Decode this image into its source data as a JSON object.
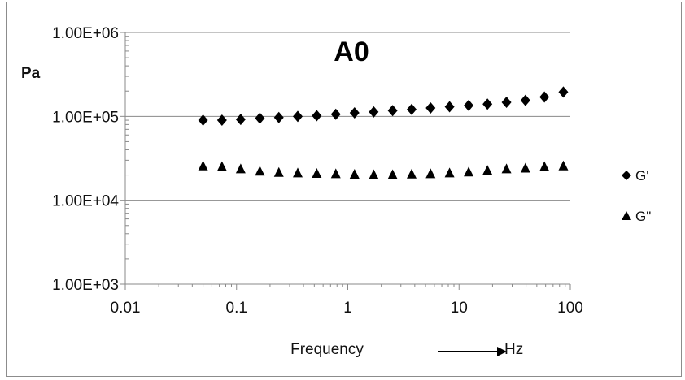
{
  "chart_data": {
    "type": "scatter",
    "title": "A0",
    "ylabel": "Pa",
    "xlabel": "Frequency",
    "x_unit": "Hz",
    "x_scale": "log",
    "y_scale": "log",
    "xlim": [
      0.01,
      100
    ],
    "ylim": [
      1000,
      1000000
    ],
    "x_ticks": [
      "0.01",
      "0.1",
      "1",
      "10",
      "100"
    ],
    "y_ticks": [
      "1.00E+03",
      "1.00E+04",
      "1.00E+05",
      "1.00E+06"
    ],
    "grid": "horizontal",
    "legend_position": "right",
    "x": [
      0.05,
      0.074,
      0.109,
      0.162,
      0.24,
      0.355,
      0.526,
      0.78,
      1.15,
      1.71,
      2.53,
      3.75,
      5.55,
      8.22,
      12.2,
      18.0,
      26.7,
      39.5,
      58.5,
      86.6
    ],
    "series": [
      {
        "name": "G'",
        "marker": "diamond",
        "color": "#000000",
        "values": [
          90000,
          90000,
          92000,
          95000,
          97000,
          100000,
          102000,
          106000,
          110000,
          113000,
          117000,
          121000,
          126000,
          130000,
          135000,
          140000,
          147000,
          155000,
          170000,
          195000
        ]
      },
      {
        "name": "G\"",
        "marker": "triangle",
        "color": "#000000",
        "values": [
          26000,
          25500,
          24000,
          22500,
          21800,
          21500,
          21200,
          21000,
          20700,
          20500,
          20500,
          20800,
          21000,
          21500,
          22000,
          23000,
          24000,
          24500,
          25500,
          26000
        ]
      }
    ]
  }
}
